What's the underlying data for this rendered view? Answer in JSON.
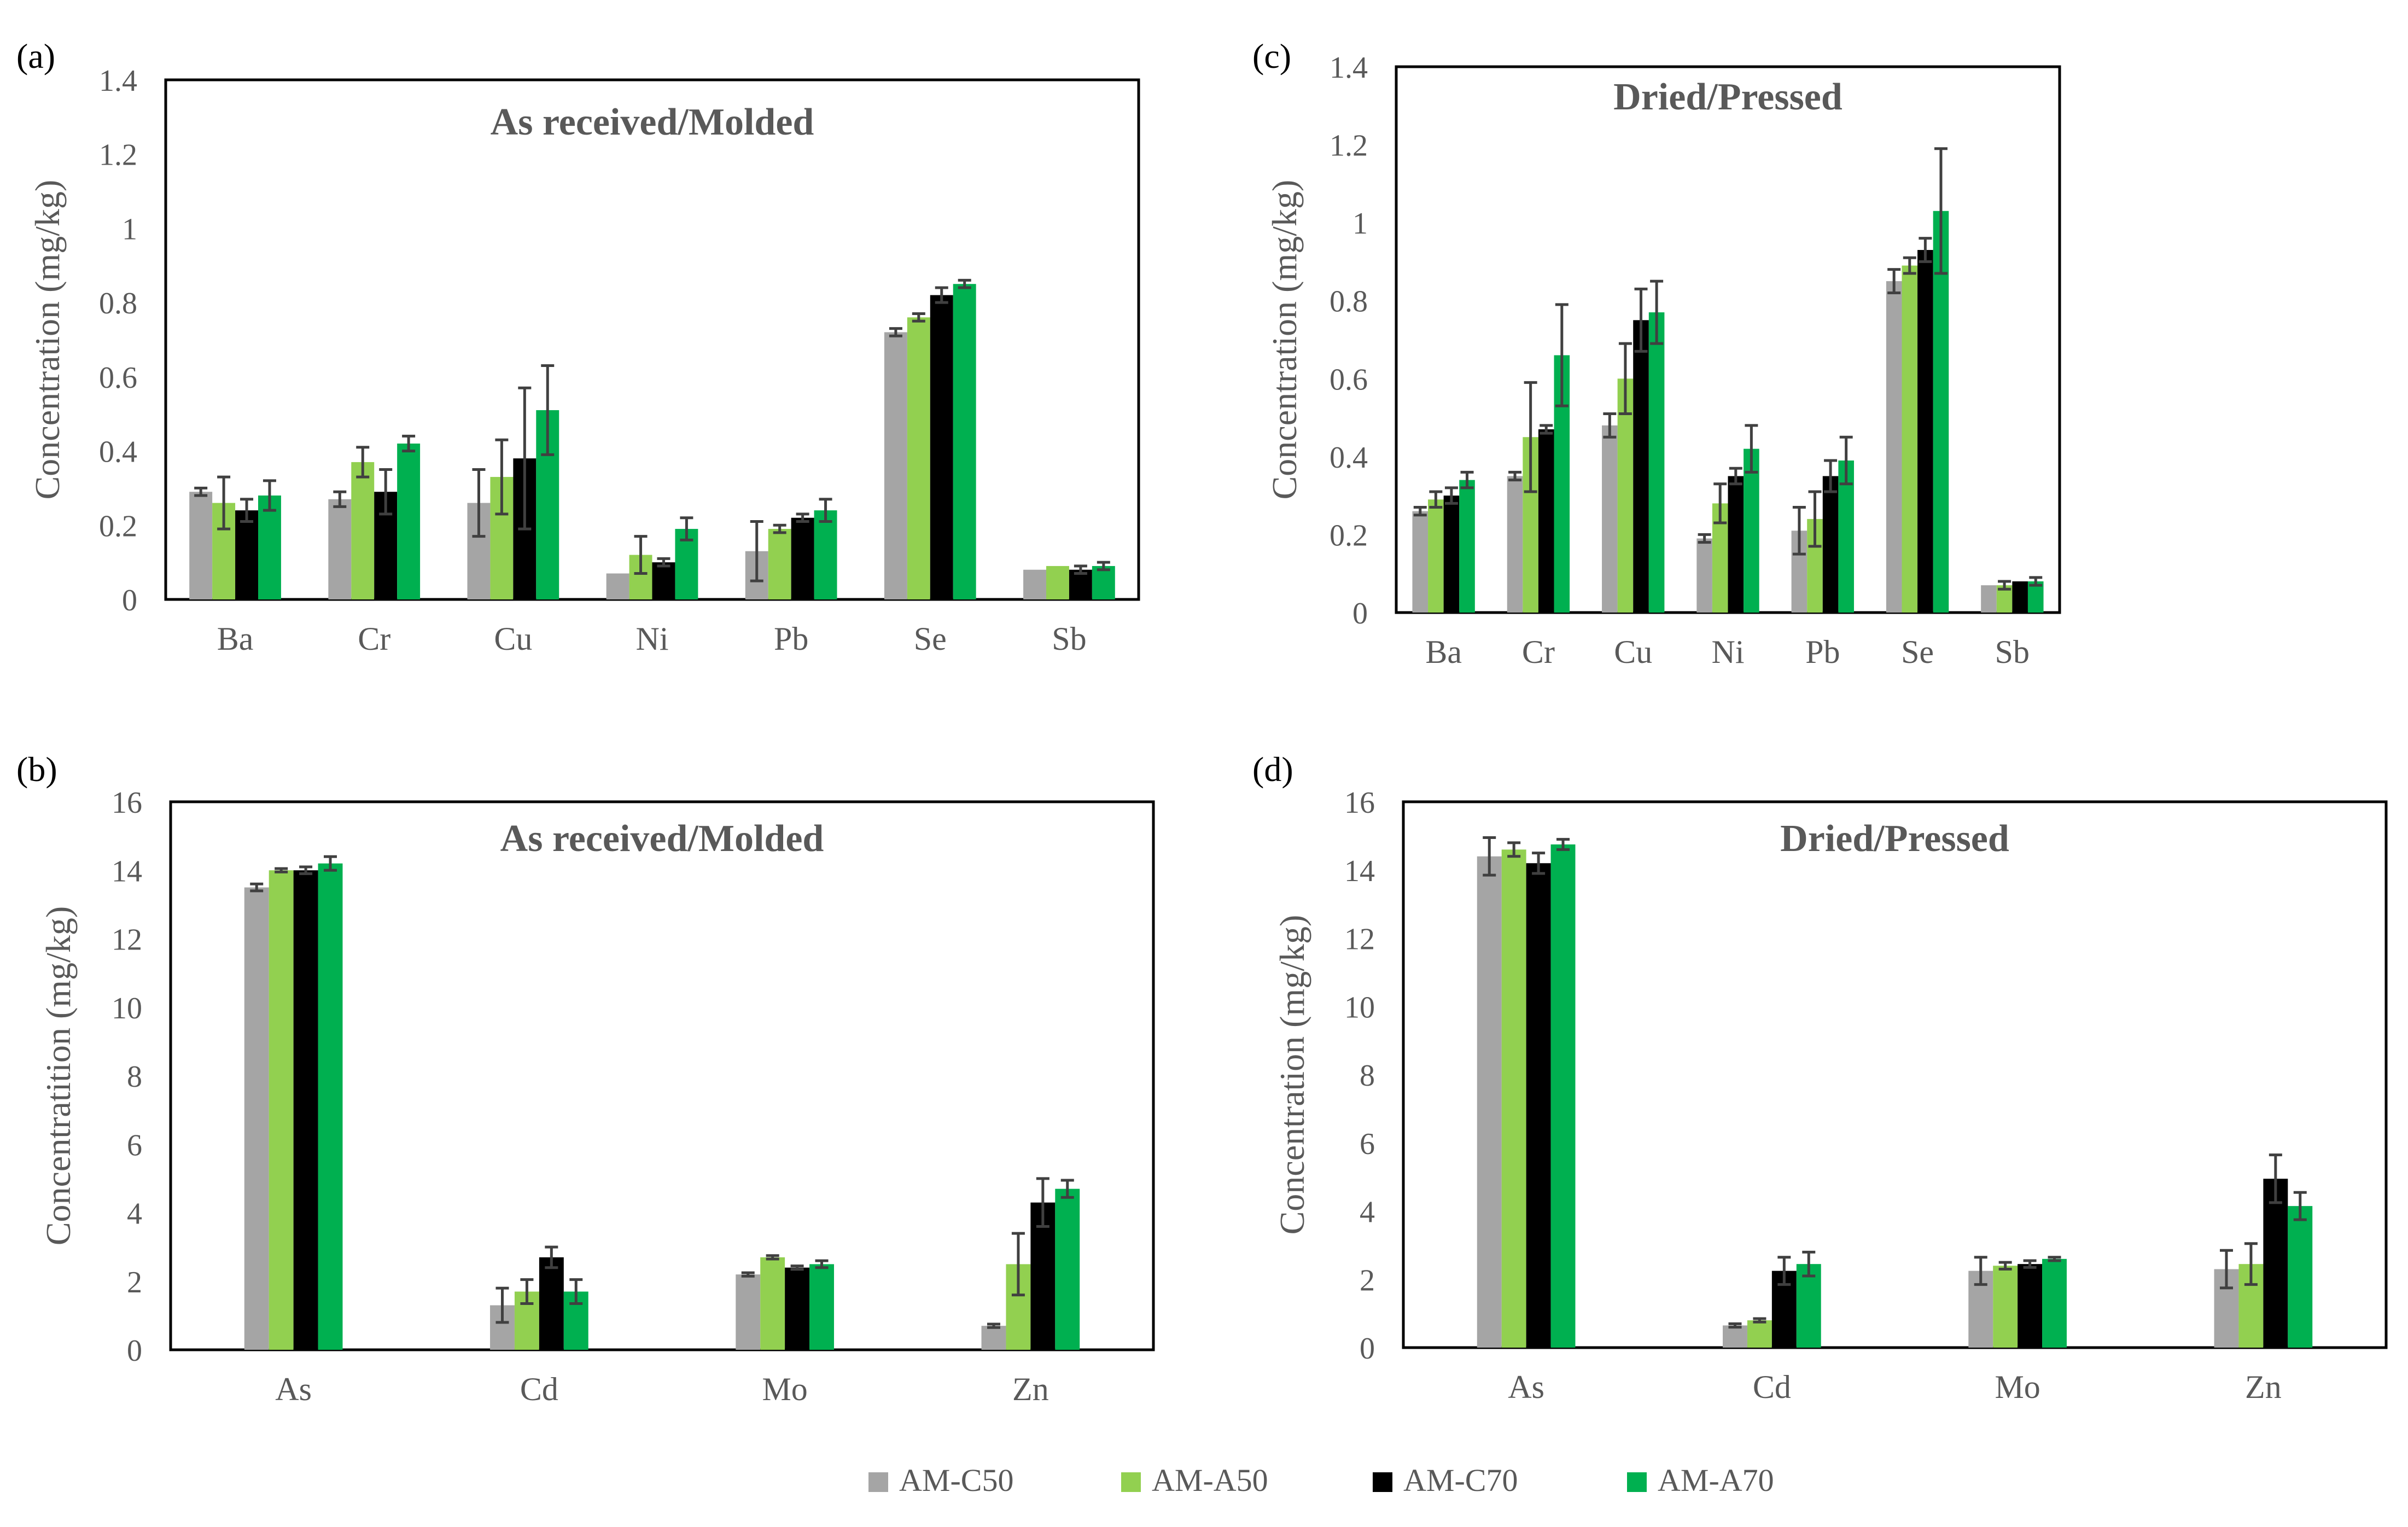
{
  "colors": {
    "AM-C50": "#a5a5a5",
    "AM-A50": "#92d050",
    "AM-C70": "#000000",
    "AM-A70": "#00b050",
    "axis": "#000000",
    "title": "#595959",
    "text": "#595959",
    "error": "#404040"
  },
  "legend": [
    "AM-C50",
    "AM-A50",
    "AM-C70",
    "AM-A70"
  ],
  "chart_data": [
    {
      "panel": "(a)",
      "type": "bar",
      "title": "As received/Molded",
      "xlabel": "",
      "ylabel": "Concentration (mg/kg)",
      "ylim": [
        0,
        1.4
      ],
      "yticks": [
        "0",
        "0.2",
        "0.4",
        "0.6",
        "0.8",
        "1",
        "1.2",
        "1.4"
      ],
      "grid": false,
      "categories": [
        "Ba",
        "Cr",
        "Cu",
        "Ni",
        "Pb",
        "Se",
        "Sb"
      ],
      "series": [
        {
          "name": "AM-C50",
          "values": [
            0.29,
            0.27,
            0.26,
            0.07,
            0.13,
            0.72,
            0.08
          ],
          "errors": [
            0.01,
            0.02,
            0.09,
            0.0,
            0.08,
            0.01,
            0.0
          ]
        },
        {
          "name": "AM-A50",
          "values": [
            0.26,
            0.37,
            0.33,
            0.12,
            0.19,
            0.76,
            0.09
          ],
          "errors": [
            0.07,
            0.04,
            0.1,
            0.05,
            0.01,
            0.01,
            0.0
          ]
        },
        {
          "name": "AM-C70",
          "values": [
            0.24,
            0.29,
            0.38,
            0.1,
            0.22,
            0.82,
            0.08
          ],
          "errors": [
            0.03,
            0.06,
            0.19,
            0.01,
            0.01,
            0.02,
            0.01
          ]
        },
        {
          "name": "AM-A70",
          "values": [
            0.28,
            0.42,
            0.51,
            0.19,
            0.24,
            0.85,
            0.09
          ],
          "errors": [
            0.04,
            0.02,
            0.12,
            0.03,
            0.03,
            0.01,
            0.01
          ]
        }
      ]
    },
    {
      "panel": "(b)",
      "type": "bar",
      "title": "As received/Molded",
      "xlabel": "",
      "ylabel": "Concentratition (mg/kg)",
      "ylim": [
        0,
        16
      ],
      "yticks": [
        "0",
        "2",
        "4",
        "6",
        "8",
        "10",
        "12",
        "14",
        "16"
      ],
      "grid": false,
      "categories": [
        "As",
        "Cd",
        "Mo",
        "Zn"
      ],
      "series": [
        {
          "name": "AM-C50",
          "values": [
            13.5,
            1.3,
            2.2,
            0.7
          ],
          "errors": [
            0.1,
            0.5,
            0.05,
            0.05
          ]
        },
        {
          "name": "AM-A50",
          "values": [
            14.0,
            1.7,
            2.7,
            2.5
          ],
          "errors": [
            0.05,
            0.35,
            0.05,
            0.9
          ]
        },
        {
          "name": "AM-C70",
          "values": [
            14.0,
            2.7,
            2.4,
            4.3
          ],
          "errors": [
            0.1,
            0.3,
            0.05,
            0.7
          ]
        },
        {
          "name": "AM-A70",
          "values": [
            14.2,
            1.7,
            2.5,
            4.7
          ],
          "errors": [
            0.2,
            0.35,
            0.1,
            0.25
          ]
        }
      ]
    },
    {
      "panel": "(c)",
      "type": "bar",
      "title": "Dried/Pressed",
      "xlabel": "",
      "ylabel": "Concentration (mg/kg)",
      "ylim": [
        0,
        1.4
      ],
      "yticks": [
        "0",
        "0.2",
        "0.4",
        "0.6",
        "0.8",
        "1",
        "1.2",
        "1.4"
      ],
      "grid": false,
      "categories": [
        "Ba",
        "Cr",
        "Cu",
        "Ni",
        "Pb",
        "Se",
        "Sb"
      ],
      "series": [
        {
          "name": "AM-C50",
          "values": [
            0.26,
            0.35,
            0.48,
            0.19,
            0.21,
            0.85,
            0.07
          ],
          "errors": [
            0.01,
            0.01,
            0.03,
            0.01,
            0.06,
            0.03,
            0.0
          ]
        },
        {
          "name": "AM-A50",
          "values": [
            0.29,
            0.45,
            0.6,
            0.28,
            0.24,
            0.89,
            0.07
          ],
          "errors": [
            0.02,
            0.14,
            0.09,
            0.05,
            0.07,
            0.02,
            0.01
          ]
        },
        {
          "name": "AM-C70",
          "values": [
            0.3,
            0.47,
            0.75,
            0.35,
            0.35,
            0.93,
            0.08
          ],
          "errors": [
            0.02,
            0.01,
            0.08,
            0.02,
            0.04,
            0.03,
            0.0
          ]
        },
        {
          "name": "AM-A70",
          "values": [
            0.34,
            0.66,
            0.77,
            0.42,
            0.39,
            1.03,
            0.08
          ],
          "errors": [
            0.02,
            0.13,
            0.08,
            0.06,
            0.06,
            0.16,
            0.01
          ]
        }
      ]
    },
    {
      "panel": "(d)",
      "type": "bar",
      "title": "Dried/Pressed",
      "xlabel": "",
      "ylabel": "Concentration (mg/kg)",
      "ylim": [
        0,
        16
      ],
      "yticks": [
        "0",
        "2",
        "4",
        "6",
        "8",
        "10",
        "12",
        "14",
        "16"
      ],
      "grid": false,
      "categories": [
        "As",
        "Cd",
        "Mo",
        "Zn"
      ],
      "series": [
        {
          "name": "AM-C50",
          "values": [
            14.4,
            0.65,
            2.25,
            2.3
          ],
          "errors": [
            0.55,
            0.05,
            0.4,
            0.55
          ]
        },
        {
          "name": "AM-A50",
          "values": [
            14.6,
            0.8,
            2.4,
            2.45
          ],
          "errors": [
            0.2,
            0.05,
            0.1,
            0.6
          ]
        },
        {
          "name": "AM-C70",
          "values": [
            14.2,
            2.25,
            2.45,
            4.95
          ],
          "errors": [
            0.3,
            0.4,
            0.1,
            0.7
          ]
        },
        {
          "name": "AM-A70",
          "values": [
            14.75,
            2.45,
            2.6,
            4.15
          ],
          "errors": [
            0.15,
            0.35,
            0.05,
            0.4
          ]
        }
      ]
    }
  ]
}
